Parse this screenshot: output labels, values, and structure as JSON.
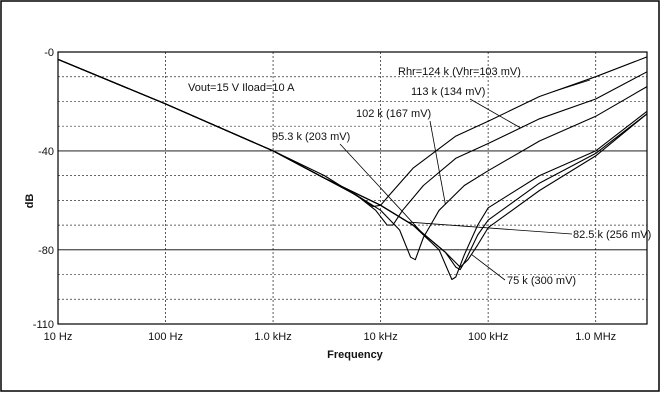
{
  "chart_data": {
    "type": "line",
    "title": "",
    "xlabel": "Frequency",
    "ylabel": "dB",
    "x_scale": "log",
    "xlim": [
      10,
      3000000
    ],
    "ylim": [
      -110,
      0
    ],
    "grid": true,
    "x_ticks": [
      {
        "value": 10,
        "label": "10 Hz"
      },
      {
        "value": 100,
        "label": "100 Hz"
      },
      {
        "value": 1000,
        "label": "1.0 kHz"
      },
      {
        "value": 10000,
        "label": "10 kHz"
      },
      {
        "value": 100000,
        "label": "100 kHz"
      },
      {
        "value": 1000000,
        "label": "1.0 MHz"
      }
    ],
    "y_ticks": [
      {
        "value": 0,
        "label": "-0"
      },
      {
        "value": -40,
        "label": "-40"
      },
      {
        "value": -80,
        "label": "-80"
      },
      {
        "value": -110,
        "label": "-110"
      }
    ],
    "conditions": "Vout=15 V Iload=10 A",
    "series": [
      {
        "name": "Rhr=124 k (Vhr=103 mV)",
        "points": [
          [
            10,
            -3
          ],
          [
            100,
            -21
          ],
          [
            1000,
            -40
          ],
          [
            3000,
            -50
          ],
          [
            5000,
            -56
          ],
          [
            7000,
            -60
          ],
          [
            8500,
            -62.5
          ],
          [
            10000,
            -62
          ],
          [
            12000,
            -58
          ],
          [
            20000,
            -47
          ],
          [
            50000,
            -34
          ],
          [
            100000,
            -28
          ],
          [
            300000,
            -18
          ],
          [
            1000000,
            -10
          ],
          [
            3000000,
            -2
          ]
        ]
      },
      {
        "name": "113 k (134 mV)",
        "points": [
          [
            10,
            -3
          ],
          [
            100,
            -21
          ],
          [
            1000,
            -40
          ],
          [
            3000,
            -51
          ],
          [
            6000,
            -58
          ],
          [
            9000,
            -64
          ],
          [
            11500,
            -70
          ],
          [
            13000,
            -70
          ],
          [
            16000,
            -64
          ],
          [
            25000,
            -54
          ],
          [
            50000,
            -43
          ],
          [
            100000,
            -37
          ],
          [
            300000,
            -27
          ],
          [
            1000000,
            -19
          ],
          [
            3000000,
            -8
          ]
        ]
      },
      {
        "name": "102 k (167 mV)",
        "points": [
          [
            10,
            -3
          ],
          [
            100,
            -21
          ],
          [
            1000,
            -40
          ],
          [
            3000,
            -51
          ],
          [
            6000,
            -58
          ],
          [
            10000,
            -64
          ],
          [
            15000,
            -72
          ],
          [
            19000,
            -83
          ],
          [
            21000,
            -84
          ],
          [
            25000,
            -75
          ],
          [
            35000,
            -64
          ],
          [
            60000,
            -54
          ],
          [
            100000,
            -48
          ],
          [
            300000,
            -36
          ],
          [
            1000000,
            -26
          ],
          [
            3000000,
            -14
          ]
        ]
      },
      {
        "name": "95.3 k (203 mV)",
        "points": [
          [
            10,
            -3
          ],
          [
            100,
            -21
          ],
          [
            1000,
            -40
          ],
          [
            3000,
            -51
          ],
          [
            10000,
            -62
          ],
          [
            20000,
            -70
          ],
          [
            35000,
            -80
          ],
          [
            42000,
            -88
          ],
          [
            46000,
            -92
          ],
          [
            50000,
            -91
          ],
          [
            60000,
            -82
          ],
          [
            80000,
            -70
          ],
          [
            100000,
            -63
          ],
          [
            300000,
            -50
          ],
          [
            1000000,
            -40
          ],
          [
            3000000,
            -24
          ]
        ]
      },
      {
        "name": "82.5 k (256 mV)",
        "points": [
          [
            10,
            -3
          ],
          [
            100,
            -21
          ],
          [
            1000,
            -40
          ],
          [
            3000,
            -51
          ],
          [
            10000,
            -62
          ],
          [
            20000,
            -70
          ],
          [
            40000,
            -81
          ],
          [
            50000,
            -87
          ],
          [
            55000,
            -88
          ],
          [
            62000,
            -84
          ],
          [
            80000,
            -74
          ],
          [
            100000,
            -68
          ],
          [
            300000,
            -53
          ],
          [
            1000000,
            -41
          ],
          [
            3000000,
            -25
          ]
        ]
      },
      {
        "name": "75 k (300 mV)",
        "points": [
          [
            10,
            -3
          ],
          [
            100,
            -21
          ],
          [
            1000,
            -40
          ],
          [
            3000,
            -51
          ],
          [
            10000,
            -62
          ],
          [
            20000,
            -70
          ],
          [
            40000,
            -81
          ],
          [
            55000,
            -87
          ],
          [
            65000,
            -84
          ],
          [
            80000,
            -78
          ],
          [
            100000,
            -71
          ],
          [
            300000,
            -56
          ],
          [
            1000000,
            -42
          ],
          [
            3000000,
            -25
          ]
        ]
      }
    ],
    "annotations": [
      {
        "text": "Rhr=124 k (Vhr=103 mV)",
        "series": 0
      },
      {
        "text": "113 k (134 mV)",
        "series": 1
      },
      {
        "text": "102 k (167 mV)",
        "series": 2
      },
      {
        "text": "95.3 k (203 mV)",
        "series": 3
      },
      {
        "text": "82.5 k (256 mV)",
        "series": 4
      },
      {
        "text": "75 k (300 mV)",
        "series": 5
      }
    ]
  }
}
